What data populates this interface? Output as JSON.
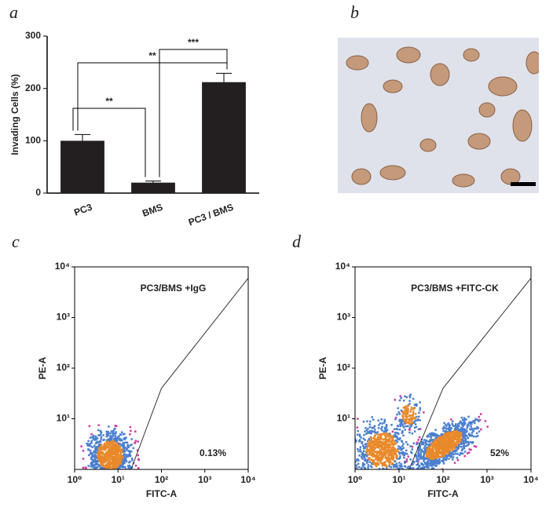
{
  "chart_data": [
    {
      "type": "bar",
      "panel_label": "a",
      "ylabel": "Invading Cells (%)",
      "categories": [
        "PC3",
        "BMS",
        "PC3 / BMS"
      ],
      "values": [
        100,
        20,
        212
      ],
      "errors": [
        12,
        3,
        17
      ],
      "color": "#231f20",
      "ylim": [
        0,
        300
      ],
      "yticks": [
        0,
        100,
        200,
        300
      ],
      "significance": [
        "**",
        "**",
        "***"
      ]
    },
    {
      "type": "scatter",
      "panel_label": "c",
      "title": "PC3/BMS +IgG",
      "annotation": "0.13%",
      "xlabel": "FITC-A",
      "ylabel": "PE-A",
      "log_scale": true,
      "xlim": [
        1,
        10000
      ],
      "ylim": [
        1,
        10000
      ],
      "xticks": [
        {
          "value": 1,
          "label": "10⁰"
        },
        {
          "value": 10,
          "label": "10¹"
        },
        {
          "value": 100,
          "label": "10²"
        },
        {
          "value": 1000,
          "label": "10³"
        },
        {
          "value": 10000,
          "label": "10⁴"
        }
      ],
      "yticks": [
        {
          "value": 10,
          "label": "10¹"
        },
        {
          "value": 100,
          "label": "10²"
        },
        {
          "value": 1000,
          "label": "10³"
        },
        {
          "value": 10000,
          "label": "10⁴"
        }
      ],
      "gate": {
        "x": [
          20,
          100,
          10000
        ],
        "y": [
          1,
          40,
          6000
        ]
      }
    },
    {
      "type": "scatter",
      "panel_label": "d",
      "title": "PC3/BMS +FITC-CK",
      "annotation": "52%",
      "xlabel": "FITC-A",
      "ylabel": "PE-A",
      "log_scale": true,
      "xlim": [
        1,
        10000
      ],
      "ylim": [
        1,
        10000
      ],
      "xticks": [
        {
          "value": 1,
          "label": "10⁰"
        },
        {
          "value": 10,
          "label": "10¹"
        },
        {
          "value": 100,
          "label": "10²"
        },
        {
          "value": 1000,
          "label": "10³"
        },
        {
          "value": 10000,
          "label": "10⁴"
        }
      ],
      "yticks": [
        {
          "value": 10,
          "label": "10¹"
        },
        {
          "value": 100,
          "label": "10²"
        },
        {
          "value": 1000,
          "label": "10³"
        },
        {
          "value": 10000,
          "label": "10⁴"
        }
      ],
      "gate": {
        "x": [
          17,
          100,
          10000
        ],
        "y": [
          1,
          40,
          6000
        ]
      }
    }
  ],
  "image_panel": {
    "panel_label": "b"
  }
}
